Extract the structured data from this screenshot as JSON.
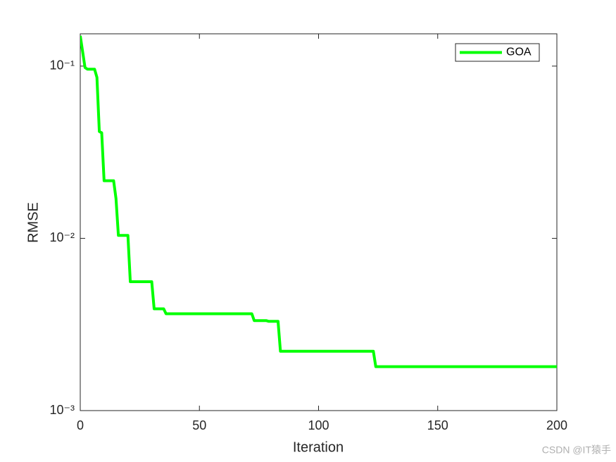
{
  "chart_data": {
    "type": "line",
    "xlabel": "Iteration",
    "ylabel": "RMSE",
    "x": [
      0,
      2,
      3,
      6,
      7,
      8,
      9,
      10,
      14,
      15,
      16,
      20,
      21,
      30,
      31,
      35,
      36,
      72,
      73,
      78,
      79,
      83,
      84,
      123,
      124,
      200
    ],
    "series": [
      {
        "name": "GOA",
        "color": "#00ff00",
        "values": [
          0.15,
          0.098,
          0.096,
          0.096,
          0.086,
          0.0417,
          0.041,
          0.0216,
          0.0216,
          0.017,
          0.0104,
          0.0104,
          0.0056,
          0.0056,
          0.0039,
          0.0039,
          0.00365,
          0.00365,
          0.00333,
          0.00333,
          0.0033,
          0.0033,
          0.00221,
          0.00221,
          0.0018,
          0.0018
        ]
      }
    ],
    "xlim": [
      0,
      200
    ],
    "xticks": [
      0,
      50,
      100,
      150,
      200
    ],
    "ylim": [
      0.001,
      0.154
    ],
    "yscale": "log",
    "yticks": [
      {
        "value": 0.001,
        "label": "10⁻³"
      },
      {
        "value": 0.01,
        "label": "10⁻²"
      },
      {
        "value": 0.1,
        "label": "10⁻¹"
      }
    ],
    "legend": "top-right",
    "grid": false,
    "watermark": "CSDN @IT猿手"
  }
}
